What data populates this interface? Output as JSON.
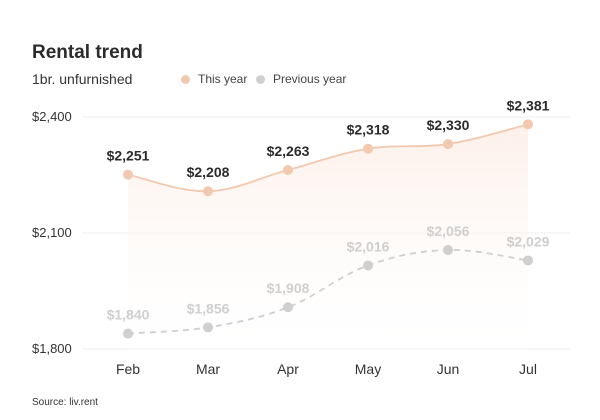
{
  "chart_data": {
    "type": "line",
    "title": "Rental trend",
    "subtitle": "1br. unfurnished",
    "categories": [
      "Feb",
      "Mar",
      "Apr",
      "May",
      "Jun",
      "Jul"
    ],
    "series": [
      {
        "name": "This year",
        "values": [
          2251,
          2208,
          2263,
          2318,
          2330,
          2381
        ],
        "labels": [
          "$2,251",
          "$2,208",
          "$2,263",
          "$2,318",
          "$2,330",
          "$2,381"
        ],
        "color": "#f2c9ae",
        "fill": "#fdf0e9",
        "style": "solid",
        "area": true
      },
      {
        "name": "Previous year",
        "values": [
          1840,
          1856,
          1908,
          2016,
          2056,
          2029
        ],
        "labels": [
          "$1,840",
          "$1,856",
          "$1,908",
          "$2,016",
          "$2,056",
          "$2,029"
        ],
        "color": "#cfcfcf",
        "style": "dashed",
        "area": false
      }
    ],
    "yticks": [
      2400,
      2100,
      1800
    ],
    "ytick_labels": [
      "$2,400",
      "$2,100",
      "$1,800"
    ],
    "ylim": [
      1800,
      2400
    ],
    "grid": true,
    "legend_position": "top-left"
  },
  "source": "Source: liv.rent"
}
